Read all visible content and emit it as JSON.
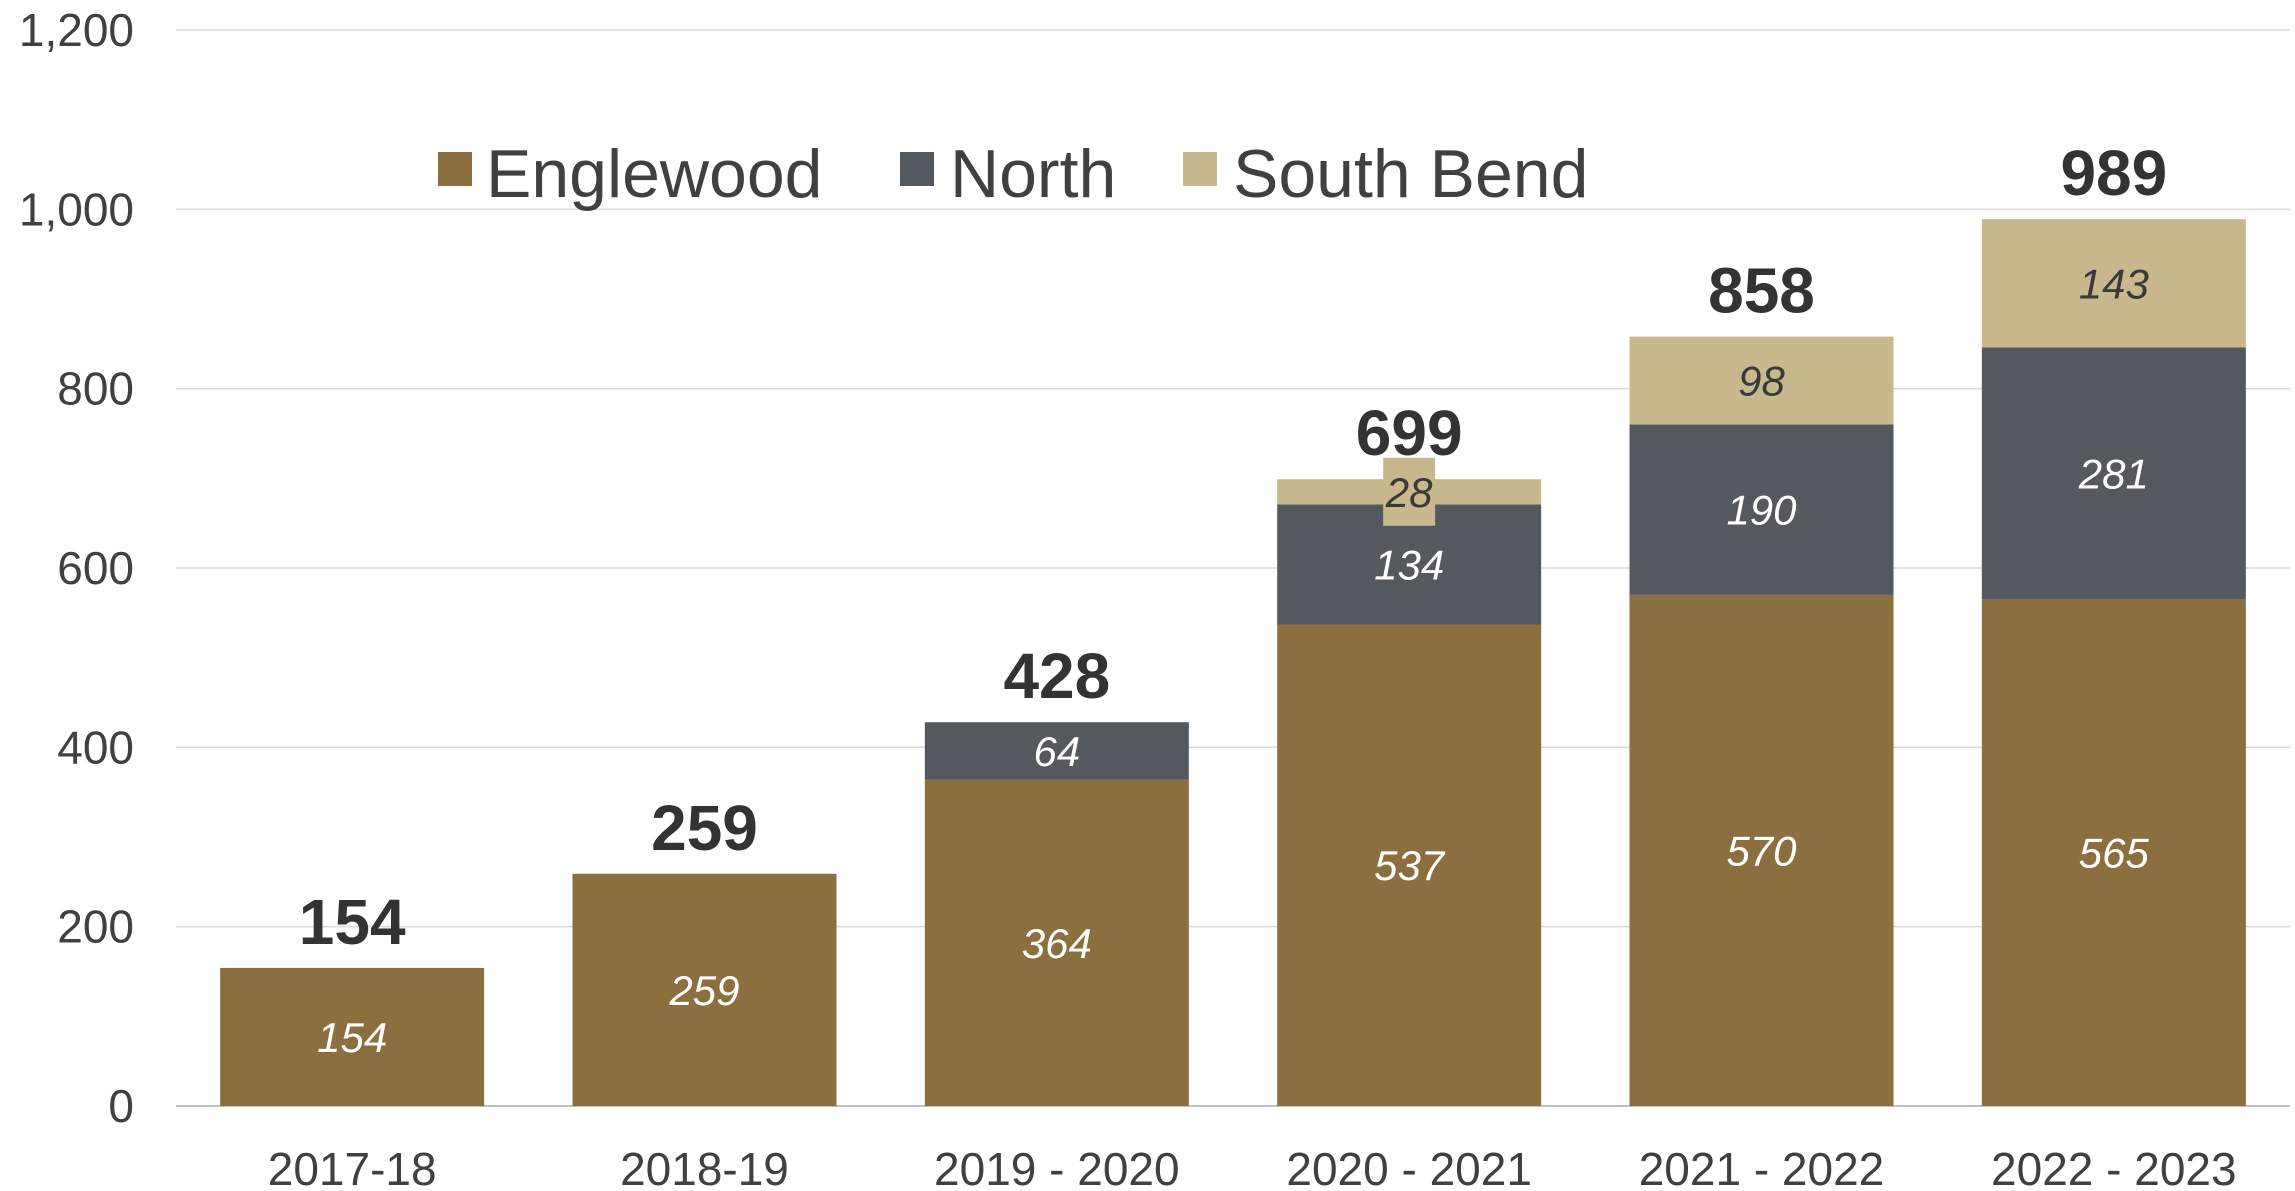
{
  "chart_data": {
    "type": "bar",
    "stacked": true,
    "categories": [
      "2017-18",
      "2018-19",
      "2019 - 2020",
      "2020 - 2021",
      "2021 - 2022",
      "2022 - 2023"
    ],
    "series": [
      {
        "name": "Englewood",
        "color": "#8B6F3E",
        "label_color": "#ffffff",
        "values": [
          154,
          259,
          364,
          537,
          570,
          565
        ]
      },
      {
        "name": "North",
        "color": "#54585F",
        "label_color": "#ffffff",
        "values": [
          0,
          0,
          64,
          134,
          190,
          281
        ]
      },
      {
        "name": "South Bend",
        "color": "#C8B88E",
        "label_color": "#3a3a3a",
        "values": [
          0,
          0,
          0,
          28,
          98,
          143
        ]
      }
    ],
    "segment_labels": [
      [
        "154",
        "259",
        "364",
        "537",
        "570",
        "565"
      ],
      [
        "",
        "",
        "64",
        "134",
        "190",
        "281"
      ],
      [
        "",
        "",
        "",
        "28",
        "98",
        "143"
      ]
    ],
    "totals": [
      "154",
      "259",
      "428",
      "699",
      "858",
      "989"
    ],
    "y_ticks": [
      "0",
      "200",
      "400",
      "600",
      "800",
      "1,000",
      "1,200"
    ],
    "ylim": [
      0,
      1200
    ],
    "grid": true,
    "legend_position": "top-left"
  }
}
